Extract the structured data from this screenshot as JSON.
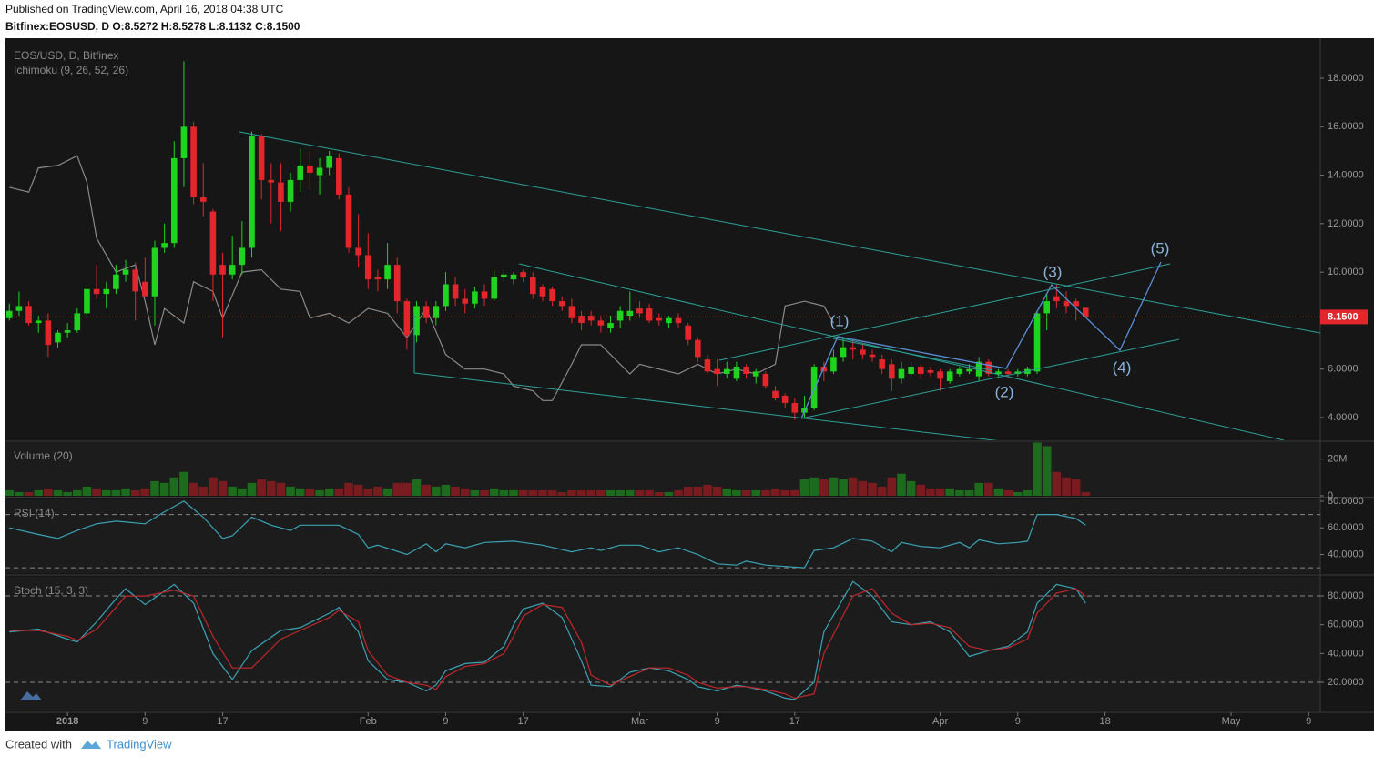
{
  "chart_data": {
    "type": "candlestick",
    "published": "Published on TradingView.com, April 16, 2018 04:38 UTC",
    "symbol_line": "Bitfinex:EOSUSD, D O:8.5272 H:8.5278 L:8.1132 C:8.1500",
    "title": "EOS/USD, D, Bitfinex",
    "indicator_label": "Ichimoku (9, 26, 52, 26)",
    "up_color": "#1ed41e",
    "down_color": "#e3262b",
    "xlim": [
      -0.4,
      135.2
    ],
    "xticks": [
      {
        "value": 6,
        "label": "2018"
      },
      {
        "value": 14,
        "label": "9"
      },
      {
        "value": 22,
        "label": "17"
      },
      {
        "value": 37,
        "label": "Feb"
      },
      {
        "value": 45,
        "label": "9"
      },
      {
        "value": 53,
        "label": "17"
      },
      {
        "value": 65,
        "label": "Mar"
      },
      {
        "value": 73,
        "label": "9"
      },
      {
        "value": 81,
        "label": "17"
      },
      {
        "value": 96,
        "label": "Apr"
      },
      {
        "value": 104,
        "label": "9"
      },
      {
        "value": 113,
        "label": "18"
      },
      {
        "value": 126,
        "label": "May"
      },
      {
        "value": 134,
        "label": "9"
      }
    ],
    "ylim": [
      3.06,
      19.54
    ],
    "yticks": [
      {
        "value": 4,
        "label": "4.0000"
      },
      {
        "value": 6,
        "label": "6.0000"
      },
      {
        "value": 8,
        "label": "8.0000"
      },
      {
        "value": 10,
        "label": "10.0000"
      },
      {
        "value": 12,
        "label": "12.0000"
      },
      {
        "value": 14,
        "label": "14.0000"
      },
      {
        "value": 16,
        "label": "16.0000"
      },
      {
        "value": 18,
        "label": "18.0000"
      }
    ],
    "candles": [
      [
        8.1,
        8.7,
        8.0,
        8.4
      ],
      [
        8.4,
        9.2,
        8.2,
        8.6
      ],
      [
        8.6,
        8.8,
        7.8,
        7.9
      ],
      [
        7.9,
        8.2,
        7.5,
        8.0
      ],
      [
        8.0,
        8.3,
        6.5,
        7.0
      ],
      [
        7.1,
        7.6,
        6.9,
        7.5
      ],
      [
        7.5,
        7.9,
        7.3,
        7.6
      ],
      [
        7.6,
        8.5,
        7.5,
        8.3
      ],
      [
        8.3,
        9.5,
        8.1,
        9.3
      ],
      [
        9.3,
        10.3,
        8.9,
        9.1
      ],
      [
        9.1,
        9.6,
        8.5,
        9.3
      ],
      [
        9.3,
        10.3,
        9.1,
        9.9
      ],
      [
        9.9,
        10.5,
        9.6,
        10.1
      ],
      [
        10.1,
        10.4,
        8.0,
        9.2
      ],
      [
        9.6,
        10.6,
        9.0,
        9.0
      ],
      [
        9.0,
        11.3,
        7.8,
        11.0
      ],
      [
        11.0,
        12.0,
        10.8,
        11.2
      ],
      [
        11.2,
        15.4,
        11.0,
        14.7
      ],
      [
        14.7,
        18.7,
        13.5,
        16.0
      ],
      [
        16.0,
        16.2,
        12.8,
        13.1
      ],
      [
        13.1,
        14.5,
        12.3,
        12.9
      ],
      [
        12.5,
        12.6,
        8.8,
        9.9
      ],
      [
        10.3,
        10.8,
        7.3,
        9.9
      ],
      [
        9.9,
        11.5,
        9.7,
        10.3
      ],
      [
        10.3,
        12.1,
        9.9,
        11.0
      ],
      [
        11.0,
        15.8,
        10.6,
        15.6
      ],
      [
        15.6,
        15.7,
        13.0,
        13.8
      ],
      [
        13.8,
        14.5,
        12.0,
        13.7
      ],
      [
        13.7,
        14.5,
        11.7,
        12.9
      ],
      [
        12.9,
        14.1,
        12.5,
        13.8
      ],
      [
        13.8,
        15.1,
        13.3,
        14.4
      ],
      [
        14.4,
        15.0,
        13.4,
        14.1
      ],
      [
        14.0,
        14.7,
        13.2,
        14.3
      ],
      [
        14.3,
        15.0,
        14.0,
        14.8
      ],
      [
        14.7,
        14.9,
        13.0,
        13.2
      ],
      [
        13.2,
        13.5,
        10.8,
        11.0
      ],
      [
        11.0,
        12.4,
        10.2,
        10.7
      ],
      [
        10.7,
        11.6,
        9.3,
        9.7
      ],
      [
        9.8,
        10.1,
        9.2,
        9.7
      ],
      [
        9.7,
        11.2,
        9.3,
        10.3
      ],
      [
        10.3,
        10.6,
        8.3,
        8.8
      ],
      [
        8.8,
        8.9,
        6.8,
        7.4
      ],
      [
        7.4,
        8.8,
        7.1,
        8.6
      ],
      [
        8.6,
        8.8,
        7.9,
        8.1
      ],
      [
        8.1,
        8.8,
        7.8,
        8.6
      ],
      [
        8.6,
        10.0,
        8.4,
        9.5
      ],
      [
        9.5,
        9.8,
        8.6,
        8.9
      ],
      [
        8.9,
        9.3,
        8.3,
        8.7
      ],
      [
        8.7,
        9.4,
        8.5,
        9.2
      ],
      [
        9.2,
        9.5,
        8.6,
        8.9
      ],
      [
        8.9,
        10.1,
        8.8,
        9.8
      ],
      [
        9.8,
        10.1,
        9.6,
        9.9
      ],
      [
        9.7,
        10.0,
        9.5,
        9.9
      ],
      [
        10.0,
        10.1,
        9.6,
        9.8
      ],
      [
        9.8,
        10.0,
        8.9,
        9.1
      ],
      [
        9.4,
        9.5,
        8.8,
        9.0
      ],
      [
        9.3,
        9.4,
        8.6,
        8.8
      ],
      [
        8.8,
        9.0,
        8.4,
        8.6
      ],
      [
        8.6,
        8.9,
        7.9,
        8.1
      ],
      [
        8.2,
        8.4,
        7.6,
        7.9
      ],
      [
        8.2,
        8.4,
        7.8,
        8.0
      ],
      [
        8.0,
        8.2,
        7.5,
        7.8
      ],
      [
        7.7,
        8.2,
        7.5,
        7.9
      ],
      [
        8.0,
        8.6,
        7.7,
        8.4
      ],
      [
        8.2,
        9.2,
        8.0,
        8.4
      ],
      [
        8.5,
        8.8,
        8.1,
        8.3
      ],
      [
        8.5,
        8.7,
        7.9,
        8.0
      ],
      [
        8.1,
        8.3,
        7.8,
        8.0
      ],
      [
        7.9,
        8.2,
        7.7,
        8.1
      ],
      [
        8.1,
        8.3,
        7.7,
        7.9
      ],
      [
        7.8,
        7.9,
        7.0,
        7.2
      ],
      [
        7.2,
        7.3,
        6.3,
        6.5
      ],
      [
        6.4,
        6.6,
        5.8,
        5.9
      ],
      [
        6.0,
        6.4,
        5.3,
        5.8
      ],
      [
        5.8,
        6.3,
        5.6,
        6.0
      ],
      [
        5.6,
        6.3,
        5.5,
        6.1
      ],
      [
        6.1,
        6.2,
        5.6,
        5.8
      ],
      [
        5.7,
        6.0,
        5.4,
        5.9
      ],
      [
        5.8,
        5.9,
        5.2,
        5.3
      ],
      [
        5.1,
        5.3,
        4.7,
        4.8
      ],
      [
        4.9,
        5.0,
        4.4,
        4.6
      ],
      [
        4.6,
        4.8,
        3.9,
        4.2
      ],
      [
        4.2,
        4.9,
        4.0,
        4.4
      ],
      [
        4.4,
        6.2,
        4.3,
        6.1
      ],
      [
        6.1,
        6.3,
        5.5,
        5.9
      ],
      [
        5.9,
        6.8,
        5.8,
        6.5
      ],
      [
        6.5,
        7.3,
        6.3,
        6.9
      ],
      [
        6.9,
        7.2,
        6.4,
        6.8
      ],
      [
        6.8,
        7.0,
        6.4,
        6.6
      ],
      [
        6.6,
        6.8,
        6.3,
        6.5
      ],
      [
        6.4,
        6.6,
        5.8,
        6.0
      ],
      [
        6.2,
        6.4,
        5.1,
        5.6
      ],
      [
        5.6,
        6.3,
        5.4,
        6.0
      ],
      [
        5.8,
        6.3,
        5.7,
        6.1
      ],
      [
        6.1,
        6.2,
        5.6,
        5.8
      ],
      [
        5.95,
        6.1,
        5.7,
        5.85
      ],
      [
        5.9,
        6.0,
        5.1,
        5.6
      ],
      [
        5.5,
        6.0,
        5.4,
        5.9
      ],
      [
        5.8,
        6.1,
        5.7,
        6.0
      ],
      [
        5.9,
        6.2,
        5.8,
        6.0
      ],
      [
        5.7,
        6.5,
        5.5,
        6.3
      ],
      [
        6.3,
        6.4,
        5.7,
        5.8
      ],
      [
        5.8,
        6.0,
        5.7,
        5.9
      ],
      [
        5.9,
        6.0,
        5.7,
        5.8
      ],
      [
        5.8,
        6.0,
        5.7,
        5.9
      ],
      [
        5.8,
        6.1,
        5.7,
        6.0
      ],
      [
        5.9,
        8.4,
        5.8,
        8.3
      ],
      [
        8.3,
        9.1,
        7.6,
        8.8
      ],
      [
        9.0,
        9.5,
        8.5,
        8.8
      ],
      [
        8.8,
        9.2,
        8.3,
        8.6
      ],
      [
        8.8,
        8.9,
        8.0,
        8.6
      ],
      [
        8.5272,
        8.5278,
        8.1132,
        8.15
      ]
    ],
    "ichimoku": {
      "color": "#8a8a8a",
      "x": [
        0,
        2,
        3,
        5,
        7,
        8,
        9,
        11,
        13,
        14,
        15,
        16,
        18,
        19,
        21,
        22,
        24,
        26,
        28,
        30,
        31,
        33,
        35,
        37,
        39,
        41,
        43,
        45,
        47,
        49,
        51,
        52,
        54,
        55,
        56,
        58,
        59,
        61,
        62,
        64,
        65,
        67,
        69,
        71,
        73,
        75,
        77,
        79,
        80,
        82,
        84,
        85
      ],
      "values": [
        13.5,
        13.3,
        14.3,
        14.4,
        14.8,
        13.7,
        11.4,
        10.0,
        10.3,
        8.8,
        7.0,
        8.5,
        7.9,
        9.6,
        9.2,
        8.1,
        10.0,
        10.1,
        9.3,
        9.2,
        8.1,
        8.3,
        7.9,
        8.5,
        8.3,
        7.3,
        8.5,
        6.6,
        6.0,
        6.0,
        5.8,
        5.3,
        5.1,
        4.7,
        4.7,
        6.2,
        7.0,
        7.0,
        6.6,
        5.8,
        6.2,
        6.0,
        5.8,
        6.2,
        5.8,
        6.0,
        5.8,
        6.2,
        8.6,
        8.8,
        8.6,
        7.9
      ]
    },
    "last_price": {
      "value": 8.15,
      "label": "8.1500",
      "color": "#e3262b"
    },
    "volume": {
      "title": "Volume (20)",
      "up_color": "#1d6b1d",
      "down_color": "#7a1c1f",
      "ylim": [
        0,
        29.2
      ],
      "yticks": [
        0,
        {
          "value": 20,
          "label": "20M"
        }
      ],
      "values": [
        3,
        2,
        2,
        3,
        4,
        3,
        2,
        3,
        5,
        4,
        3,
        3,
        4,
        3,
        4,
        8,
        7,
        10,
        13,
        7,
        5,
        10,
        8,
        5,
        4,
        7,
        9,
        8,
        7,
        5,
        4,
        4,
        3,
        4,
        4,
        7,
        6,
        4,
        5,
        4,
        7,
        7,
        9,
        6,
        5,
        6,
        5,
        4,
        3,
        3,
        4,
        3,
        3,
        3,
        3,
        3,
        3,
        2,
        3,
        3,
        3,
        3,
        3,
        3,
        3,
        3,
        3,
        2,
        2,
        3,
        5,
        5,
        6,
        5,
        4,
        3,
        3,
        3,
        3,
        4,
        3,
        3,
        9,
        10,
        9,
        10,
        9,
        10,
        8,
        7,
        5,
        10,
        12,
        8,
        6,
        4,
        4,
        4,
        3,
        3,
        7,
        7,
        4,
        3,
        2,
        3,
        29,
        27,
        13,
        10,
        9,
        2
      ]
    },
    "rsi": {
      "title": "RSI (14)",
      "color": "#3aa3b5",
      "ylim": [
        26,
        82
      ],
      "levels": [
        30,
        70
      ],
      "yticks": [
        {
          "value": 40,
          "label": "40.0000"
        },
        {
          "value": 60,
          "label": "60.0000"
        },
        {
          "value": 80,
          "label": "80.0000"
        }
      ],
      "x": [
        0,
        3,
        5,
        7,
        9,
        11,
        14,
        16,
        18,
        20,
        22,
        23,
        25,
        27,
        29,
        30,
        34,
        36,
        37,
        38,
        41,
        43,
        44,
        45,
        47,
        49,
        52,
        53,
        55,
        58,
        60,
        61,
        63,
        65,
        67,
        69,
        71,
        73,
        75,
        76,
        78,
        80,
        82,
        83,
        85,
        87,
        89,
        91,
        92,
        94,
        96,
        98,
        99,
        100,
        102,
        104,
        105,
        106,
        108,
        110,
        111
      ],
      "values": [
        60,
        55,
        52,
        58,
        63,
        65,
        63,
        72,
        80,
        68,
        52,
        54,
        68,
        62,
        58,
        62,
        62,
        55,
        45,
        47,
        40,
        48,
        42,
        48,
        45,
        49,
        50,
        49,
        47,
        42,
        45,
        43,
        47,
        47,
        42,
        45,
        40,
        33,
        32,
        35,
        32,
        31,
        30,
        43,
        45,
        52,
        50,
        42,
        49,
        46,
        45,
        49,
        45,
        51,
        48,
        49,
        50,
        70,
        70,
        67,
        62
      ]
    },
    "stoch": {
      "title": "Stoch (15, 3, 3)",
      "ylim": [
        -0.2,
        93.3
      ],
      "levels": [
        20,
        80
      ],
      "yticks": [
        {
          "value": 20,
          "label": "20.0000"
        },
        {
          "value": 40,
          "label": "40.0000"
        },
        {
          "value": 60,
          "label": "60.0000"
        },
        {
          "value": 80,
          "label": "80.0000"
        }
      ],
      "x": [
        0,
        3,
        6,
        7,
        9,
        11,
        12,
        14,
        17,
        19,
        21,
        23,
        25,
        28,
        30,
        33,
        34,
        36,
        37,
        39,
        41,
        43,
        44,
        45,
        47,
        49,
        51,
        52,
        53,
        55,
        57,
        59,
        60,
        62,
        64,
        66,
        68,
        70,
        71,
        73,
        75,
        76,
        78,
        80,
        81,
        83,
        84,
        87,
        89,
        91,
        93,
        95,
        97,
        99,
        101,
        103,
        105,
        106,
        108,
        110,
        111
      ],
      "series": [
        {
          "color": "#3aa3b5",
          "values": [
            55,
            57,
            50,
            48,
            62,
            78,
            85,
            74,
            88,
            75,
            40,
            22,
            42,
            56,
            58,
            68,
            72,
            55,
            35,
            22,
            20,
            14,
            18,
            28,
            33,
            34,
            45,
            60,
            71,
            75,
            65,
            35,
            18,
            17,
            27,
            30,
            28,
            22,
            17,
            14,
            18,
            17,
            14,
            9,
            8,
            20,
            55,
            90,
            80,
            62,
            60,
            62,
            55,
            38,
            42,
            45,
            55,
            75,
            88,
            85,
            75
          ]
        },
        {
          "color": "#c0282d",
          "values": [
            56,
            56,
            52,
            49,
            57,
            72,
            80,
            80,
            84,
            80,
            52,
            30,
            30,
            50,
            56,
            65,
            70,
            62,
            42,
            25,
            20,
            18,
            15,
            24,
            31,
            33,
            40,
            52,
            66,
            74,
            72,
            48,
            25,
            18,
            24,
            30,
            30,
            25,
            20,
            16,
            17,
            17,
            15,
            12,
            9,
            12,
            40,
            80,
            85,
            68,
            60,
            61,
            58,
            45,
            42,
            44,
            50,
            68,
            82,
            85,
            80
          ]
        }
      ]
    },
    "waves": [
      "(1)",
      "(2)",
      "(3)",
      "(4)",
      "(5)"
    ],
    "footer": {
      "created": "Created with",
      "brand": "TradingView"
    }
  }
}
